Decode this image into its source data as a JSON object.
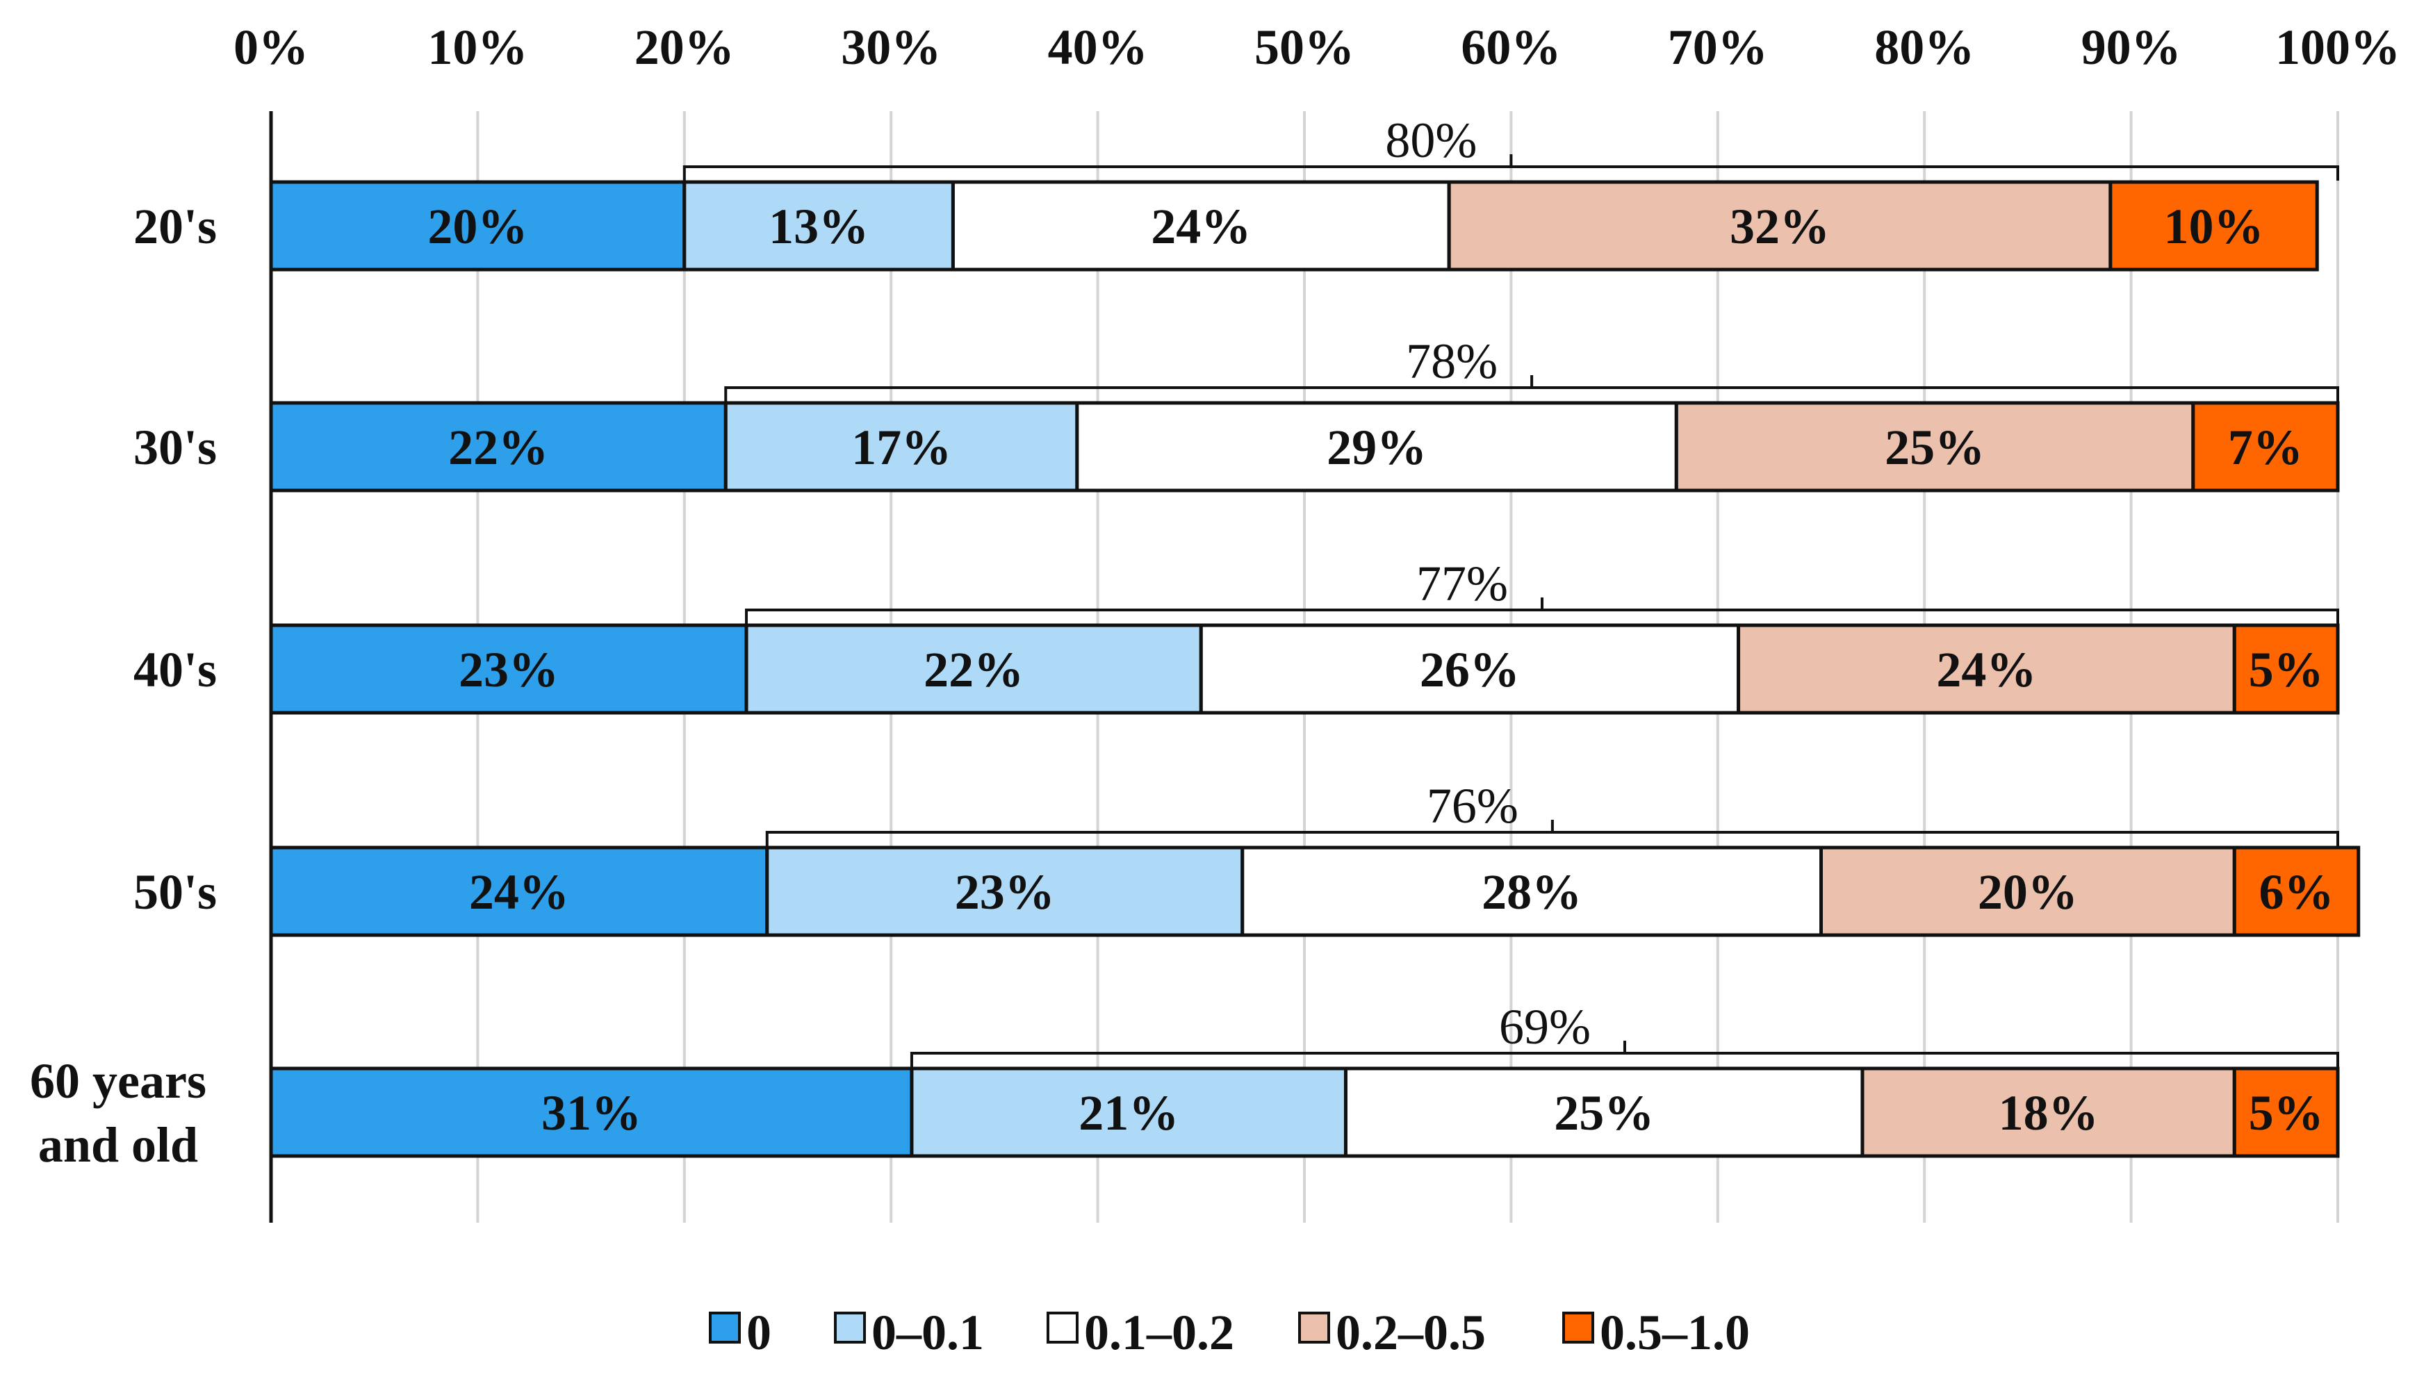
{
  "chart_data": {
    "type": "bar",
    "orientation": "horizontal",
    "stacked": true,
    "xlim": [
      0,
      100
    ],
    "x_ticks": [
      "0%",
      "10%",
      "20%",
      "30%",
      "40%",
      "50%",
      "60%",
      "70%",
      "80%",
      "90%",
      "100%"
    ],
    "x_axis_position": "top",
    "grid": true,
    "categories": [
      "20's",
      "30's",
      "40's",
      "50's",
      "60 years and old"
    ],
    "category_lines": [
      [
        "20's"
      ],
      [
        "30's"
      ],
      [
        "40's"
      ],
      [
        "50's"
      ],
      [
        "60 years",
        "and old"
      ]
    ],
    "series": [
      {
        "name": "0",
        "color": "#2E9FEA",
        "values": [
          20,
          22,
          23,
          24,
          31
        ],
        "labels": [
          "20%",
          "22%",
          "23%",
          "24%",
          "31%"
        ]
      },
      {
        "name": "0–0.1",
        "color": "#AEDAF8",
        "values": [
          13,
          17,
          22,
          23,
          21
        ],
        "labels": [
          "13%",
          "17%",
          "22%",
          "23%",
          "21%"
        ]
      },
      {
        "name": "0.1–0.2",
        "color": "#FFFFFF",
        "values": [
          24,
          29,
          26,
          28,
          25
        ],
        "labels": [
          "24%",
          "29%",
          "26%",
          "28%",
          "25%"
        ]
      },
      {
        "name": "0.2–0.5",
        "color": "#EBC0AC",
        "values": [
          32,
          25,
          24,
          20,
          18
        ],
        "labels": [
          "32%",
          "25%",
          "24%",
          "20%",
          "18%"
        ]
      },
      {
        "name": "0.5–1.0",
        "color": "#FF6600",
        "values": [
          10,
          7,
          5,
          6,
          5
        ],
        "labels": [
          "10%",
          "7%",
          "5%",
          "6%",
          "5%"
        ]
      }
    ],
    "brackets": [
      {
        "category": "20's",
        "start": 20,
        "end": 100,
        "label": "80%"
      },
      {
        "category": "30's",
        "start": 22,
        "end": 100,
        "label": "78%"
      },
      {
        "category": "40's",
        "start": 23,
        "end": 100,
        "label": "77%"
      },
      {
        "category": "50's",
        "start": 24,
        "end": 100,
        "label": "76%"
      },
      {
        "category": "60 years and old",
        "start": 31,
        "end": 100,
        "label": "69%"
      }
    ],
    "legend": {
      "position": "bottom",
      "entries": [
        "0",
        "0–0.1",
        "0.1–0.2",
        "0.2–0.5",
        "0.5–1.0"
      ]
    }
  }
}
